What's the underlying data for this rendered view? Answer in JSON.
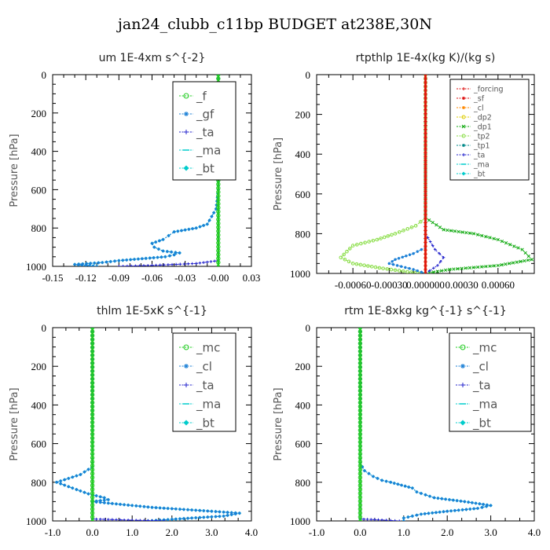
{
  "figure_title": "jan24_clubb_c11bp  BUDGET at238E,30N",
  "colors": {
    "green": "#22cc22",
    "blue": "#1a7fd6",
    "cyan": "#00cccc",
    "navy": "#2222cc",
    "red": "#dd1111",
    "orange": "#ff8800",
    "yellow": "#ddcc00",
    "dkgreen": "#11aa11",
    "ltgreen": "#88dd44",
    "teal": "#008888"
  },
  "chart_data": [
    {
      "type": "line",
      "title": "um  1E-4xm s^{-2}",
      "ylabel": "Pressure [hPa]",
      "xlim": [
        -0.15,
        0.03
      ],
      "ylim": [
        0,
        1000
      ],
      "x_ticks": [
        -0.15,
        -0.12,
        -0.09,
        -0.06,
        -0.03,
        0.0,
        0.03
      ],
      "x_tick_labels": [
        "-0.15",
        "-0.12",
        "-0.09",
        "-0.06",
        "-0.03",
        "-0.00",
        "0.03"
      ],
      "y_ticks": [
        0,
        200,
        400,
        600,
        800,
        1000
      ],
      "legend_pos": "top-right",
      "legend": [
        "_f",
        "_gf",
        "_ta",
        "_ma",
        "_bt"
      ],
      "series": [
        {
          "name": "_bt",
          "color": "cyan",
          "points": [
            [
              0.0,
              0
            ],
            [
              0.0,
              600
            ],
            [
              -0.002,
              700
            ],
            [
              -0.006,
              740
            ],
            [
              -0.01,
              780
            ],
            [
              -0.02,
              800
            ],
            [
              -0.04,
              820
            ],
            [
              -0.045,
              840
            ],
            [
              -0.05,
              860
            ],
            [
              -0.06,
              880
            ],
            [
              -0.058,
              900
            ],
            [
              -0.05,
              920
            ],
            [
              -0.035,
              930
            ],
            [
              -0.04,
              940
            ],
            [
              -0.048,
              950
            ],
            [
              -0.09,
              970
            ],
            [
              -0.105,
              980
            ],
            [
              -0.13,
              990
            ],
            [
              -0.11,
              1000
            ]
          ]
        },
        {
          "name": "_gf",
          "color": "blue",
          "points": [
            [
              0.0,
              0
            ],
            [
              0.0,
              600
            ],
            [
              -0.002,
              700
            ],
            [
              -0.006,
              740
            ],
            [
              -0.01,
              780
            ],
            [
              -0.02,
              800
            ],
            [
              -0.04,
              820
            ],
            [
              -0.045,
              840
            ],
            [
              -0.05,
              860
            ],
            [
              -0.06,
              880
            ],
            [
              -0.058,
              900
            ],
            [
              -0.05,
              920
            ],
            [
              -0.035,
              930
            ],
            [
              -0.04,
              940
            ],
            [
              -0.048,
              950
            ],
            [
              -0.09,
              970
            ],
            [
              -0.105,
              980
            ],
            [
              -0.13,
              990
            ],
            [
              -0.11,
              1000
            ]
          ]
        },
        {
          "name": "_ta",
          "color": "navy",
          "points": [
            [
              0.0,
              0
            ],
            [
              0.0,
              970
            ],
            [
              -0.02,
              985
            ],
            [
              -0.06,
              995
            ],
            [
              -0.09,
              1000
            ]
          ]
        },
        {
          "name": "_f",
          "color": "green",
          "points": [
            [
              0.0,
              0
            ],
            [
              0.0,
              1000
            ]
          ]
        }
      ]
    },
    {
      "type": "line",
      "title": "rtpthlp  1E-4x(kg K)/(kg s)",
      "ylabel": "Pressure [hPa]",
      "xlim": [
        -0.0009,
        0.0009
      ],
      "ylim": [
        0,
        1000
      ],
      "x_ticks": [
        -0.0006,
        -0.0003,
        0.0,
        0.0003,
        0.0006
      ],
      "x_tick_labels": [
        "-0.00060",
        "-0.00030",
        "0.000000",
        "0.00030",
        "0.00060"
      ],
      "y_ticks": [
        0,
        200,
        400,
        600,
        800,
        1000
      ],
      "legend_pos": "top-right",
      "legend": [
        "_forcing",
        "_sf",
        "_cl",
        "_dp2",
        "_dp1",
        "_tp2",
        "_tp1",
        "_ta",
        "_ma",
        "_bt"
      ],
      "series": [
        {
          "name": "_dp1",
          "color": "dkgreen",
          "points": [
            [
              0.0,
              0
            ],
            [
              0.0,
              720
            ],
            [
              0.00015,
              780
            ],
            [
              0.0004,
              800
            ],
            [
              0.0006,
              830
            ],
            [
              0.0008,
              880
            ],
            [
              0.00088,
              930
            ],
            [
              0.0006,
              960
            ],
            [
              0.0002,
              980
            ],
            [
              0.0,
              1000
            ]
          ]
        },
        {
          "name": "_tp2",
          "color": "ltgreen",
          "points": [
            [
              0.0,
              0
            ],
            [
              0.0,
              720
            ],
            [
              -8e-05,
              760
            ],
            [
              -0.00025,
              800
            ],
            [
              -0.0004,
              830
            ],
            [
              -0.0006,
              860
            ],
            [
              -0.00065,
              890
            ],
            [
              -0.0007,
              920
            ],
            [
              -0.0006,
              950
            ],
            [
              -0.00035,
              975
            ],
            [
              -5e-05,
              1000
            ]
          ]
        },
        {
          "name": "_ta",
          "color": "navy",
          "points": [
            [
              0.0,
              0
            ],
            [
              0.0,
              800
            ],
            [
              8e-05,
              880
            ],
            [
              0.00015,
              920
            ],
            [
              0.0001,
              960
            ],
            [
              0.0,
              1000
            ]
          ]
        },
        {
          "name": "_tp1",
          "color": "blue",
          "points": [
            [
              0.0,
              0
            ],
            [
              0.0,
              870
            ],
            [
              -0.0001,
              900
            ],
            [
              -0.00025,
              930
            ],
            [
              -0.0003,
              950
            ],
            [
              -0.0001,
              980
            ],
            [
              0.0,
              1000
            ]
          ]
        },
        {
          "name": "_cl",
          "color": "orange",
          "points": [
            [
              0.0,
              0
            ],
            [
              0.0,
              1000
            ]
          ]
        },
        {
          "name": "_forcing",
          "color": "red",
          "points": [
            [
              0.0,
              0
            ],
            [
              0.0,
              1000
            ]
          ]
        }
      ]
    },
    {
      "type": "line",
      "title": "thlm  1E-5xK s^{-1}",
      "ylabel": "Pressure [hPa]",
      "xlim": [
        -1.0,
        4.0
      ],
      "ylim": [
        0,
        1000
      ],
      "x_ticks": [
        -1.0,
        0.0,
        1.0,
        2.0,
        3.0,
        4.0
      ],
      "x_tick_labels": [
        "-1.0",
        "0.0",
        "1.0",
        "2.0",
        "3.0",
        "4.0"
      ],
      "y_ticks": [
        0,
        200,
        400,
        600,
        800,
        1000
      ],
      "legend_pos": "top-right",
      "legend": [
        "_mc",
        "_cl",
        "_ta",
        "_ma",
        "_bt"
      ],
      "series": [
        {
          "name": "_bt",
          "color": "cyan",
          "points": [
            [
              0.0,
              0
            ],
            [
              0.0,
              720
            ],
            [
              -0.3,
              760
            ],
            [
              -0.6,
              780
            ],
            [
              -0.9,
              800
            ],
            [
              -0.5,
              830
            ],
            [
              -0.1,
              860
            ],
            [
              0.3,
              880
            ],
            [
              0.4,
              890
            ],
            [
              0.0,
              900
            ],
            [
              0.5,
              910
            ],
            [
              1.5,
              930
            ],
            [
              3.0,
              950
            ],
            [
              3.7,
              960
            ],
            [
              3.3,
              975
            ],
            [
              2.5,
              985
            ],
            [
              1.4,
              1000
            ]
          ]
        },
        {
          "name": "_cl",
          "color": "blue",
          "points": [
            [
              0.0,
              0
            ],
            [
              0.0,
              720
            ],
            [
              -0.3,
              760
            ],
            [
              -0.6,
              780
            ],
            [
              -0.9,
              800
            ],
            [
              -0.5,
              830
            ],
            [
              -0.1,
              860
            ],
            [
              0.3,
              880
            ],
            [
              0.4,
              890
            ],
            [
              0.0,
              900
            ],
            [
              0.5,
              910
            ],
            [
              1.5,
              930
            ],
            [
              3.0,
              950
            ],
            [
              3.7,
              960
            ],
            [
              3.3,
              975
            ],
            [
              2.5,
              985
            ],
            [
              1.4,
              1000
            ]
          ]
        },
        {
          "name": "_ta",
          "color": "navy",
          "points": [
            [
              0.0,
              0
            ],
            [
              0.0,
              990
            ],
            [
              0.8,
              995
            ],
            [
              1.8,
              1000
            ]
          ]
        },
        {
          "name": "_mc",
          "color": "green",
          "points": [
            [
              0.0,
              0
            ],
            [
              0.0,
              1000
            ]
          ]
        }
      ]
    },
    {
      "type": "line",
      "title": "rtm  1E-8xkg kg^{-1} s^{-1}",
      "ylabel": "Pressure [hPa]",
      "xlim": [
        -1.0,
        4.0
      ],
      "ylim": [
        0,
        1000
      ],
      "x_ticks": [
        -1.0,
        0.0,
        1.0,
        2.0,
        3.0,
        4.0
      ],
      "x_tick_labels": [
        "-1.0",
        "0.0",
        "1.0",
        "2.0",
        "3.0",
        "4.0"
      ],
      "y_ticks": [
        0,
        200,
        400,
        600,
        800,
        1000
      ],
      "legend_pos": "top-right",
      "legend": [
        "_mc",
        "_cl",
        "_ta",
        "_ma",
        "_bt"
      ],
      "series": [
        {
          "name": "_bt",
          "color": "cyan",
          "points": [
            [
              0.0,
              0
            ],
            [
              0.0,
              700
            ],
            [
              0.1,
              740
            ],
            [
              0.3,
              770
            ],
            [
              0.5,
              790
            ],
            [
              0.7,
              800
            ],
            [
              1.2,
              830
            ],
            [
              1.3,
              850
            ],
            [
              1.7,
              880
            ],
            [
              2.4,
              900
            ],
            [
              3.0,
              920
            ],
            [
              2.7,
              935
            ],
            [
              2.0,
              950
            ],
            [
              1.4,
              965
            ],
            [
              1.0,
              985
            ],
            [
              1.0,
              1000
            ]
          ]
        },
        {
          "name": "_cl",
          "color": "blue",
          "points": [
            [
              0.0,
              0
            ],
            [
              0.0,
              700
            ],
            [
              0.1,
              740
            ],
            [
              0.3,
              770
            ],
            [
              0.5,
              790
            ],
            [
              0.7,
              800
            ],
            [
              1.2,
              830
            ],
            [
              1.3,
              850
            ],
            [
              1.7,
              880
            ],
            [
              2.4,
              900
            ],
            [
              3.0,
              920
            ],
            [
              2.7,
              935
            ],
            [
              2.0,
              950
            ],
            [
              1.4,
              965
            ],
            [
              1.0,
              985
            ],
            [
              1.0,
              1000
            ]
          ]
        },
        {
          "name": "_ta",
          "color": "navy",
          "points": [
            [
              0.0,
              0
            ],
            [
              0.0,
              990
            ],
            [
              0.5,
              995
            ],
            [
              0.9,
              1000
            ]
          ]
        },
        {
          "name": "_mc",
          "color": "green",
          "points": [
            [
              0.0,
              0
            ],
            [
              0.0,
              1000
            ]
          ]
        }
      ]
    }
  ]
}
